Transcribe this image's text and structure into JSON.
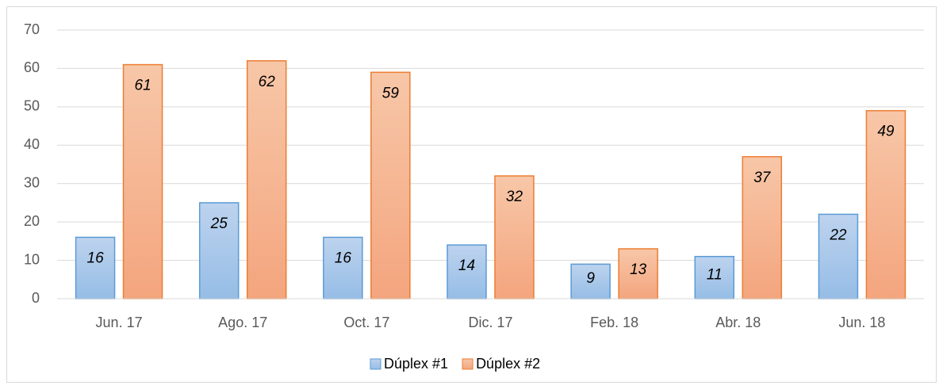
{
  "chart_data": {
    "type": "bar",
    "categories": [
      "Jun. 17",
      "Ago. 17",
      "Oct. 17",
      "Dic. 17",
      "Feb. 18",
      "Abr. 18",
      "Jun. 18"
    ],
    "series": [
      {
        "name": "Dúplex #1",
        "color": "#5b9bd5",
        "values": [
          16,
          25,
          16,
          14,
          9,
          11,
          22
        ]
      },
      {
        "name": "Dúplex #2",
        "color": "#ed7d31",
        "values": [
          61,
          62,
          59,
          32,
          13,
          37,
          49
        ]
      }
    ],
    "ylim": [
      0,
      70
    ],
    "yticks": [
      0,
      10,
      20,
      30,
      40,
      50,
      60,
      70
    ],
    "grid": true,
    "legend": "bottom"
  }
}
